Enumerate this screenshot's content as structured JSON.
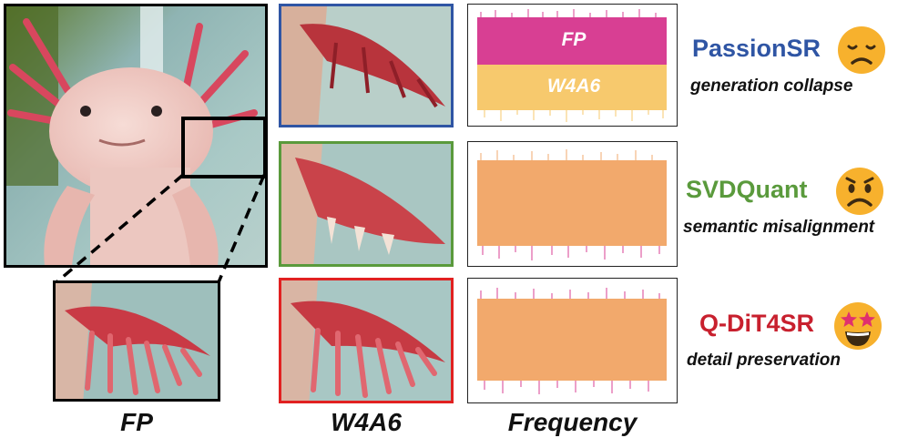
{
  "columns": {
    "fp_label": "FP",
    "w4a6_label": "W4A6",
    "freq_label": "Frequency"
  },
  "rows": [
    {
      "method": "PassionSR",
      "color": "#2f55a4",
      "description": "generation collapse",
      "emoji": "sad-face-icon",
      "overlay_top": "FP",
      "overlay_bottom": "W4A6"
    },
    {
      "method": "SVDQuant",
      "color": "#5a9a3c",
      "description": "semantic misalignment",
      "emoji": "frowning-face-icon"
    },
    {
      "method": "Q-DiT4SR",
      "color": "#c8202e",
      "description": "detail preservation",
      "emoji": "star-struck-face-icon"
    }
  ],
  "colors": {
    "fp_signal": "#d83f93",
    "w4a6_signal": "#f7c96d",
    "overlap_signal": "#f2a96c",
    "border_blue": "#2f55a4",
    "border_green": "#5a9a3c",
    "border_red": "#e12121"
  }
}
